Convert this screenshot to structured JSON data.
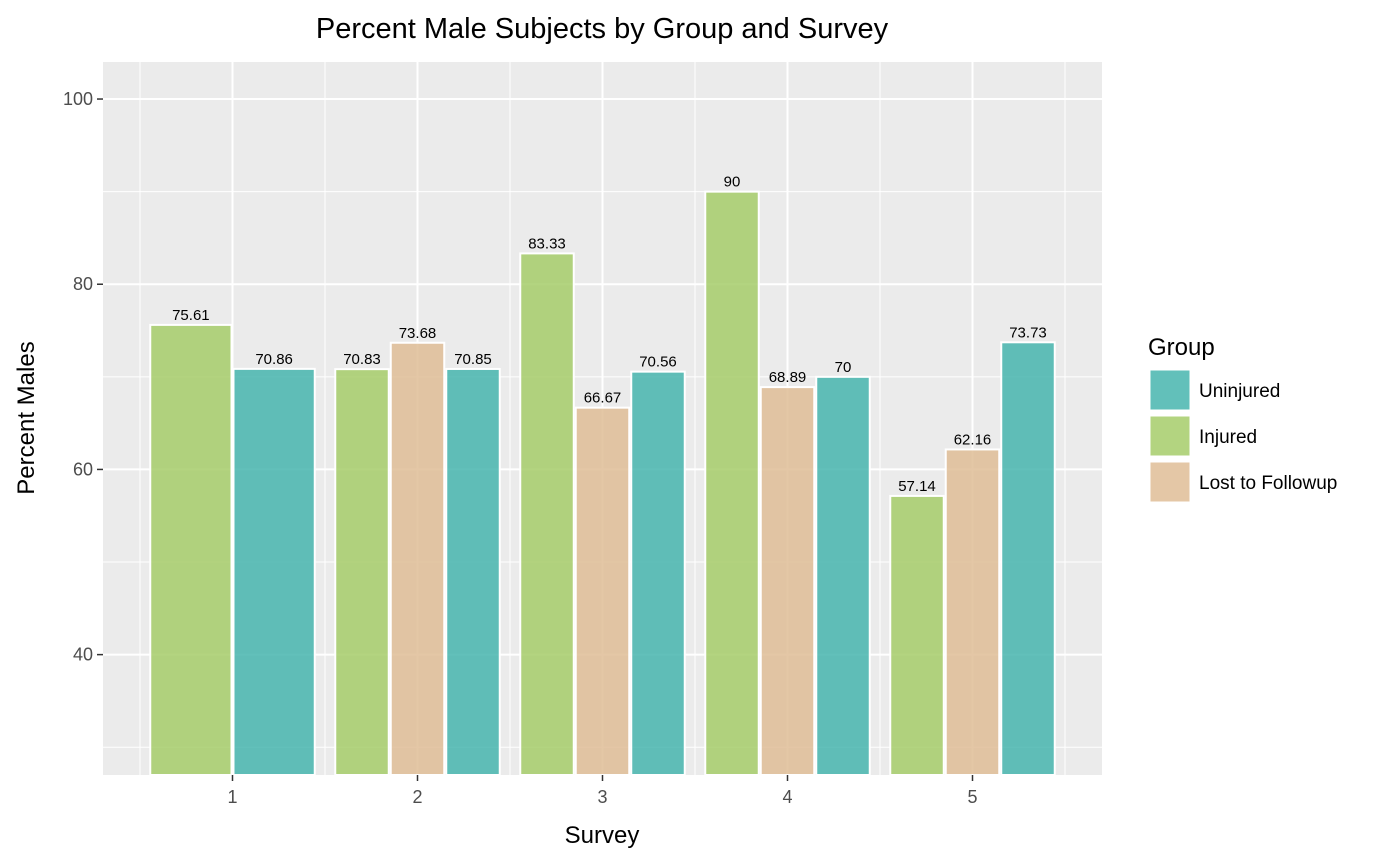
{
  "chart_data": {
    "type": "bar",
    "title": "Percent Male Subjects by Group and Survey",
    "xlabel": "Survey",
    "ylabel": "Percent Males",
    "categories": [
      "1",
      "2",
      "3",
      "4",
      "5"
    ],
    "ylim": [
      27,
      104
    ],
    "yticks": [
      40,
      60,
      80,
      100
    ],
    "grid": true,
    "legend": {
      "title": "Group",
      "placement": "right",
      "entries": [
        "Uninjured",
        "Injured",
        "Lost to Followup"
      ]
    },
    "series": [
      {
        "name": "Injured",
        "color": "#a6cc6a",
        "values": [
          75.61,
          70.83,
          83.33,
          90,
          57.14
        ],
        "labels": [
          "75.61",
          "70.83",
          "83.33",
          "90",
          "57.14"
        ]
      },
      {
        "name": "Lost to Followup",
        "color": "#dfbd96",
        "values": [
          null,
          73.68,
          66.67,
          68.89,
          62.16
        ],
        "labels": [
          "",
          "73.68",
          "66.67",
          "68.89",
          "62.16"
        ]
      },
      {
        "name": "Uninjured",
        "color": "#46b5ae",
        "values": [
          70.86,
          70.85,
          70.56,
          70,
          73.73
        ],
        "labels": [
          "70.86",
          "70.85",
          "70.56",
          "70",
          "73.73"
        ]
      }
    ]
  }
}
